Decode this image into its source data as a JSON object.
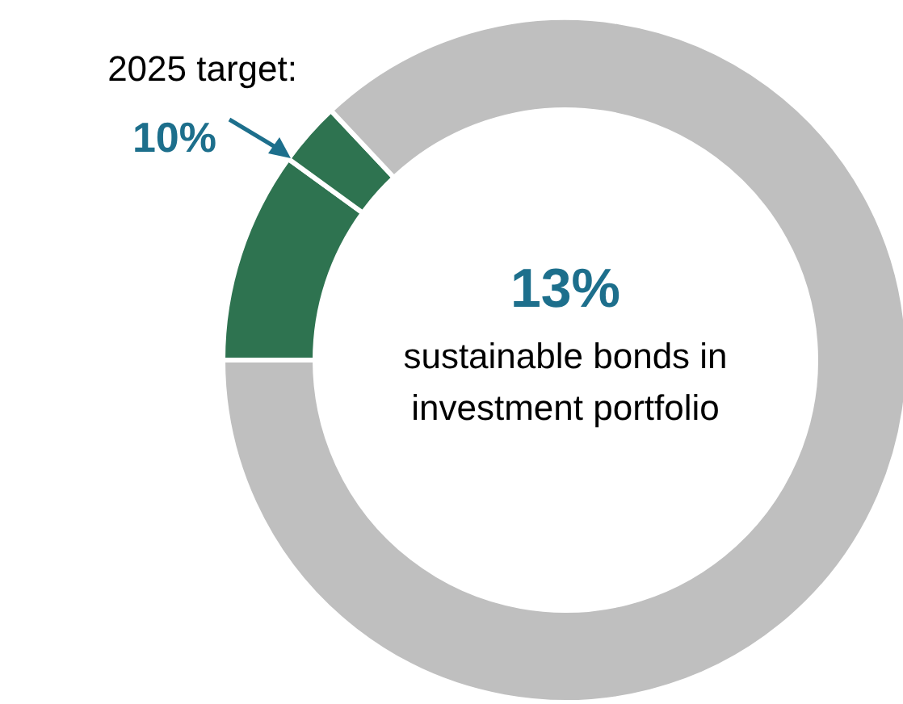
{
  "chart_data": {
    "type": "donut",
    "categories": [
      null,
      null,
      null
    ],
    "values": [
      10,
      3,
      87
    ],
    "colors": [
      "#2e7350",
      "#2e7350",
      "#bfbfbf"
    ],
    "annotations": [
      "13%",
      "sustainable bonds in investment portfolio",
      "2025 target:",
      "10%"
    ]
  }
}
